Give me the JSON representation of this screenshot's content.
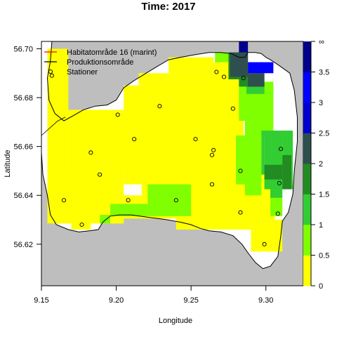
{
  "chart_data": {
    "type": "heatmap",
    "title": "Time: 2017",
    "xlabel": "Longitude",
    "ylabel": "Latitude",
    "xlim": [
      9.15,
      9.325
    ],
    "ylim": [
      56.603,
      56.703
    ],
    "x_ticks": [
      "9.15",
      "9.20",
      "9.25",
      "9.30"
    ],
    "x_tick_values": [
      9.15,
      9.2,
      9.25,
      9.3
    ],
    "y_ticks": [
      "56.62",
      "56.64",
      "56.66",
      "56.68",
      "56.70"
    ],
    "y_tick_values": [
      56.62,
      56.64,
      56.66,
      56.68,
      56.7
    ],
    "grid": false,
    "legend_position": "top-left",
    "legend": [
      {
        "label": "Habitatområde 16 (marint)",
        "symbol": "line",
        "color": "#ff0000"
      },
      {
        "label": "Produktionsområde",
        "symbol": "line",
        "color": "#000000"
      },
      {
        "label": "Stationer",
        "symbol": "circle",
        "color": "#000000"
      }
    ],
    "colorbar": {
      "labels": [
        "0",
        "0.5",
        "1",
        "1.5",
        "2",
        "2.5",
        "3",
        "3.5",
        "∞"
      ],
      "bins": [
        {
          "from": 0,
          "to": 0.5,
          "color": "#ffff00"
        },
        {
          "from": 0.5,
          "to": 1,
          "color": "#7fff00"
        },
        {
          "from": 1,
          "to": 1.5,
          "color": "#32cd32"
        },
        {
          "from": 1.5,
          "to": 2,
          "color": "#228b22"
        },
        {
          "from": 2,
          "to": 2.5,
          "color": "#2f4f4f"
        },
        {
          "from": 2.5,
          "to": 3,
          "color": "#0000cd"
        },
        {
          "from": 3,
          "to": 3.5,
          "color": "#0000ff"
        },
        {
          "from": 3.5,
          "to": null,
          "color": "#00008b"
        }
      ]
    },
    "colors": {
      "land": "#bebebe",
      "water_bg": "#ffffff",
      "yellow": "#ffff00",
      "lightgreen": "#7fff00",
      "green": "#32cd32",
      "darkgreen": "#228b22",
      "slate": "#2f4f4f",
      "blue": "#0000ff",
      "navy": "#00008b"
    },
    "cells": [
      {
        "x1": 9.154,
        "x2": 9.168,
        "y1": 56.672,
        "y2": 56.7,
        "color": "yellow"
      },
      {
        "x1": 9.154,
        "x2": 9.168,
        "y1": 56.6285,
        "y2": 56.672,
        "color": "yellow"
      },
      {
        "x1": 9.168,
        "x2": 9.207,
        "y1": 56.65,
        "y2": 56.675,
        "color": "yellow"
      },
      {
        "x1": 9.159,
        "x2": 9.188,
        "y1": 56.6285,
        "y2": 56.65,
        "color": "yellow"
      },
      {
        "x1": 9.188,
        "x2": 9.205,
        "y1": 56.6285,
        "y2": 56.65,
        "color": "yellow"
      },
      {
        "x1": 9.17,
        "x2": 9.183,
        "y1": 56.626,
        "y2": 56.63,
        "color": "yellow"
      },
      {
        "x1": 9.205,
        "x2": 9.285,
        "y1": 56.6445,
        "y2": 56.685,
        "color": "yellow"
      },
      {
        "x1": 9.215,
        "x2": 9.275,
        "y1": 56.685,
        "y2": 56.69,
        "color": "yellow"
      },
      {
        "x1": 9.235,
        "x2": 9.265,
        "y1": 56.69,
        "y2": 56.6965,
        "color": "yellow"
      },
      {
        "x1": 9.265,
        "x2": 9.28,
        "y1": 56.69,
        "y2": 56.6945,
        "color": "yellow"
      },
      {
        "x1": 9.265,
        "x2": 9.282,
        "y1": 56.6705,
        "y2": 56.69,
        "color": "yellow"
      },
      {
        "x1": 9.217,
        "x2": 9.25,
        "y1": 56.64,
        "y2": 56.6445,
        "color": "yellow"
      },
      {
        "x1": 9.24,
        "x2": 9.296,
        "y1": 56.626,
        "y2": 56.6445,
        "color": "yellow"
      },
      {
        "x1": 9.278,
        "x2": 9.306,
        "y1": 56.6285,
        "y2": 56.65,
        "color": "yellow"
      },
      {
        "x1": 9.29,
        "x2": 9.305,
        "y1": 56.617,
        "y2": 56.6285,
        "color": "yellow"
      },
      {
        "x1": 9.205,
        "x2": 9.24,
        "y1": 56.6305,
        "y2": 56.64,
        "color": "yellow"
      },
      {
        "x1": 9.185,
        "x2": 9.205,
        "y1": 56.6285,
        "y2": 56.6365,
        "color": "yellow"
      },
      {
        "x1": 9.305,
        "x2": 9.311,
        "y1": 56.617,
        "y2": 56.63,
        "color": "yellow"
      },
      {
        "x1": 9.266,
        "x2": 9.275,
        "y1": 56.6945,
        "y2": 56.6985,
        "color": "lightgreen"
      },
      {
        "x1": 9.275,
        "x2": 9.282,
        "y1": 56.69,
        "y2": 56.6985,
        "color": "lightgreen"
      },
      {
        "x1": 9.282,
        "x2": 9.305,
        "y1": 56.6705,
        "y2": 56.6865,
        "color": "lightgreen"
      },
      {
        "x1": 9.286,
        "x2": 9.305,
        "y1": 56.6645,
        "y2": 56.6705,
        "color": "lightgreen"
      },
      {
        "x1": 9.28,
        "x2": 9.297,
        "y1": 56.6445,
        "y2": 56.6645,
        "color": "lightgreen"
      },
      {
        "x1": 9.286,
        "x2": 9.297,
        "y1": 56.64,
        "y2": 56.6445,
        "color": "lightgreen"
      },
      {
        "x1": 9.303,
        "x2": 9.311,
        "y1": 56.6315,
        "y2": 56.64,
        "color": "lightgreen"
      },
      {
        "x1": 9.221,
        "x2": 9.25,
        "y1": 56.6315,
        "y2": 56.6445,
        "color": "lightgreen"
      },
      {
        "x1": 9.196,
        "x2": 9.221,
        "y1": 56.6315,
        "y2": 56.6365,
        "color": "lightgreen"
      },
      {
        "x1": 9.189,
        "x2": 9.196,
        "y1": 56.6285,
        "y2": 56.632,
        "color": "lightgreen"
      },
      {
        "x1": 9.287,
        "x2": 9.299,
        "y1": 56.6815,
        "y2": 56.6865,
        "color": "green"
      },
      {
        "x1": 9.299,
        "x2": 9.311,
        "y1": 56.6425,
        "y2": 56.6665,
        "color": "green"
      },
      {
        "x1": 9.297,
        "x2": 9.299,
        "y1": 56.6485,
        "y2": 56.6665,
        "color": "green"
      },
      {
        "x1": 9.311,
        "x2": 9.318,
        "y1": 56.6425,
        "y2": 56.6665,
        "color": "green"
      },
      {
        "x1": 9.311,
        "x2": 9.317,
        "y1": 56.6605,
        "y2": 56.6665,
        "color": "green"
      },
      {
        "x1": 9.303,
        "x2": 9.311,
        "y1": 56.639,
        "y2": 56.6425,
        "color": "green"
      },
      {
        "x1": 9.275,
        "x2": 9.288,
        "y1": 56.6875,
        "y2": 56.6985,
        "color": "darkgreen"
      },
      {
        "x1": 9.282,
        "x2": 9.299,
        "y1": 56.6845,
        "y2": 56.69,
        "color": "darkgreen"
      },
      {
        "x1": 9.311,
        "x2": 9.317,
        "y1": 56.6425,
        "y2": 56.6565,
        "color": "darkgreen"
      },
      {
        "x1": 9.299,
        "x2": 9.311,
        "y1": 56.6465,
        "y2": 56.6525,
        "color": "darkgreen"
      },
      {
        "x1": 9.288,
        "x2": 9.299,
        "y1": 56.6845,
        "y2": 56.69,
        "color": "slate"
      },
      {
        "x1": 9.276,
        "x2": 9.288,
        "y1": 56.6885,
        "y2": 56.6985,
        "color": "slate"
      },
      {
        "x1": 9.282,
        "x2": 9.288,
        "y1": 56.6985,
        "y2": 56.7035,
        "color": "navy"
      },
      {
        "x1": 9.288,
        "x2": 9.305,
        "y1": 56.69,
        "y2": 56.6945,
        "color": "blue"
      }
    ],
    "stations": [
      {
        "x": 9.157,
        "y": 56.689
      },
      {
        "x": 9.201,
        "y": 56.673
      },
      {
        "x": 9.229,
        "y": 56.6765
      },
      {
        "x": 9.267,
        "y": 56.6905
      },
      {
        "x": 9.272,
        "y": 56.6885
      },
      {
        "x": 9.285,
        "y": 56.688
      },
      {
        "x": 9.278,
        "y": 56.6755
      },
      {
        "x": 9.183,
        "y": 56.6575
      },
      {
        "x": 9.212,
        "y": 56.663
      },
      {
        "x": 9.253,
        "y": 56.663
      },
      {
        "x": 9.265,
        "y": 56.6585
      },
      {
        "x": 9.264,
        "y": 56.6565
      },
      {
        "x": 9.31,
        "y": 56.659
      },
      {
        "x": 9.189,
        "y": 56.6485
      },
      {
        "x": 9.283,
        "y": 56.65
      },
      {
        "x": 9.309,
        "y": 56.645
      },
      {
        "x": 9.264,
        "y": 56.6445
      },
      {
        "x": 9.165,
        "y": 56.638
      },
      {
        "x": 9.208,
        "y": 56.638
      },
      {
        "x": 9.24,
        "y": 56.638
      },
      {
        "x": 9.283,
        "y": 56.633
      },
      {
        "x": 9.308,
        "y": 56.6325
      },
      {
        "x": 9.177,
        "y": 56.628
      },
      {
        "x": 9.299,
        "y": 56.62
      }
    ],
    "coastline": [
      [
        9.15,
        56.703
      ],
      [
        9.15,
        56.6575
      ],
      [
        9.151,
        56.6485
      ],
      [
        9.154,
        56.64
      ],
      [
        9.156,
        56.632
      ],
      [
        9.16,
        56.628
      ],
      [
        9.168,
        56.626
      ],
      [
        9.175,
        56.625
      ],
      [
        9.182,
        56.6255
      ],
      [
        9.188,
        56.626
      ],
      [
        9.191,
        56.629
      ],
      [
        9.196,
        56.6315
      ],
      [
        9.202,
        56.632
      ],
      [
        9.21,
        56.632
      ],
      [
        9.222,
        56.631
      ],
      [
        9.234,
        56.63
      ],
      [
        9.243,
        56.629
      ],
      [
        9.25,
        56.628
      ],
      [
        9.256,
        56.6265
      ],
      [
        9.262,
        56.6255
      ],
      [
        9.27,
        56.625
      ],
      [
        9.278,
        56.6235
      ],
      [
        9.284,
        56.62
      ],
      [
        9.288,
        56.6165
      ],
      [
        9.293,
        56.6125
      ],
      [
        9.298,
        56.61
      ],
      [
        9.303,
        56.611
      ],
      [
        9.308,
        56.615
      ],
      [
        9.31,
        56.6235
      ],
      [
        9.311,
        56.6295
      ],
      [
        9.315,
        56.633
      ],
      [
        9.318,
        56.6405
      ],
      [
        9.319,
        56.65
      ],
      [
        9.321,
        56.662
      ],
      [
        9.321,
        56.672
      ],
      [
        9.319,
        56.683
      ],
      [
        9.316,
        56.69
      ],
      [
        9.308,
        56.6935
      ],
      [
        9.303,
        56.6955
      ],
      [
        9.3,
        56.6965
      ],
      [
        9.297,
        56.698
      ],
      [
        9.293,
        56.6985
      ],
      [
        9.288,
        56.6985
      ],
      [
        9.286,
        56.6965
      ],
      [
        9.282,
        56.6965
      ],
      [
        9.277,
        56.698
      ],
      [
        9.27,
        56.6985
      ],
      [
        9.262,
        56.6985
      ],
      [
        9.252,
        56.6975
      ],
      [
        9.243,
        56.6965
      ],
      [
        9.235,
        56.6955
      ],
      [
        9.228,
        56.693
      ],
      [
        9.22,
        56.69
      ],
      [
        9.212,
        56.687
      ],
      [
        9.205,
        56.684
      ],
      [
        9.2,
        56.679
      ],
      [
        9.194,
        56.677
      ],
      [
        9.186,
        56.6765
      ],
      [
        9.178,
        56.675
      ],
      [
        9.171,
        56.6725
      ],
      [
        9.165,
        56.6705
      ],
      [
        9.159,
        56.6735
      ],
      [
        9.155,
        56.679
      ],
      [
        9.154,
        56.688
      ],
      [
        9.156,
        56.695
      ],
      [
        9.157,
        56.703
      ]
    ],
    "prod_area_line": [
      [
        9.15,
        56.6645
      ],
      [
        9.161,
        56.6705
      ],
      [
        9.166,
        56.672
      ]
    ]
  }
}
